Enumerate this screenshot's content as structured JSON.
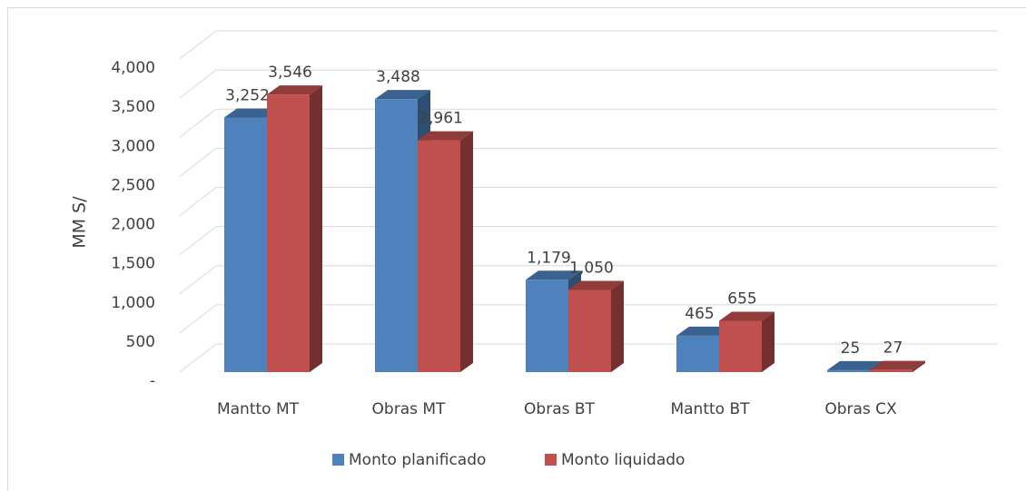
{
  "chart_data": {
    "type": "bar3d",
    "y_axis_label": "MM S/",
    "categories": [
      "Mantto MT",
      "Obras MT",
      "Obras BT",
      "Mantto BT",
      "Obras CX"
    ],
    "series": [
      {
        "name": "Monto planificado",
        "color": "#4f81bd",
        "values": [
          3252,
          3488,
          1179,
          465,
          25
        ],
        "value_labels": [
          "3,252",
          "3,488",
          "1,179",
          "465",
          "25"
        ]
      },
      {
        "name": "Monto liquidado",
        "color": "#c0504d",
        "values": [
          3546,
          2961,
          1050,
          655,
          27
        ],
        "value_labels": [
          "3,546",
          "2,961",
          "1,050",
          "655",
          "27"
        ]
      }
    ],
    "ylim": [
      0,
      4000
    ],
    "yticks": [
      {
        "value": 0,
        "label": "-"
      },
      500,
      {
        "value": 1000,
        "label": "1,000"
      },
      {
        "value": 1500,
        "label": "1,500"
      },
      {
        "value": 2000,
        "label": "2,000"
      },
      {
        "value": 2500,
        "label": "2,500"
      },
      {
        "value": 3000,
        "label": "3,000"
      },
      {
        "value": 3500,
        "label": "3,500"
      },
      {
        "value": 4000,
        "label": "4,000"
      }
    ],
    "grid": true,
    "legend": "bottom"
  }
}
